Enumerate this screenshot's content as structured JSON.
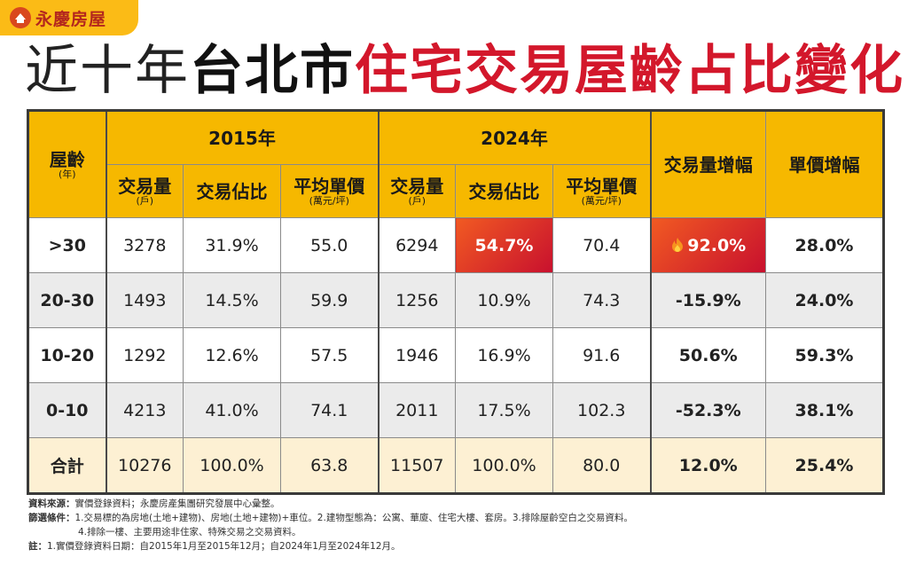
{
  "header": {
    "brand": "永慶房屋",
    "title": {
      "part1": "近十年",
      "part2": "台北市",
      "part3": "住宅交易屋齡占比變化"
    }
  },
  "table": {
    "age_header": "屋齡",
    "age_unit": "(年)",
    "groups": [
      "2015年",
      "2024年"
    ],
    "columns": [
      {
        "label": "交易量",
        "unit": "(戶)"
      },
      {
        "label": "交易佔比"
      },
      {
        "label": "平均單價",
        "unit": "(萬元/坪)"
      }
    ],
    "growth_headers": [
      "交易量增幅",
      "單價增幅"
    ],
    "rows": [
      [
        ">30",
        "3278",
        "31.9%",
        "55.0",
        "6294",
        "54.7%",
        "70.4",
        "92.0%",
        "28.0%"
      ],
      [
        "20-30",
        "1493",
        "14.5%",
        "59.9",
        "1256",
        "10.9%",
        "74.3",
        "-15.9%",
        "24.0%"
      ],
      [
        "10-20",
        "1292",
        "12.6%",
        "57.5",
        "1946",
        "16.9%",
        "91.6",
        "50.6%",
        "59.3%"
      ],
      [
        "0-10",
        "4213",
        "41.0%",
        "74.1",
        "2011",
        "17.5%",
        "102.3",
        "-52.3%",
        "38.1%"
      ],
      [
        "合計",
        "10276",
        "100.0%",
        "63.8",
        "11507",
        "100.0%",
        "80.0",
        "12.0%",
        "25.4%"
      ]
    ]
  },
  "notes": [
    {
      "label": "資料來源：",
      "text": "實價登錄資料；永慶房產集團研究發展中心彙整。"
    },
    {
      "label": "篩選條件：",
      "text": "1.交易標的為房地(土地+建物)、房地(土地+建物)+車位。2.建物型態為：公寓、華廈、住宅大樓、套房。3.排除屋齡空白之交易資料。"
    },
    {
      "text": "4.排除一樓、主要用途非住家、特殊交易之交易資料。"
    },
    {
      "label": "註：",
      "text": "1.實價登錄資料日期：自2015年1月至2015年12月；自2024年1月至2024年12月。"
    }
  ]
}
